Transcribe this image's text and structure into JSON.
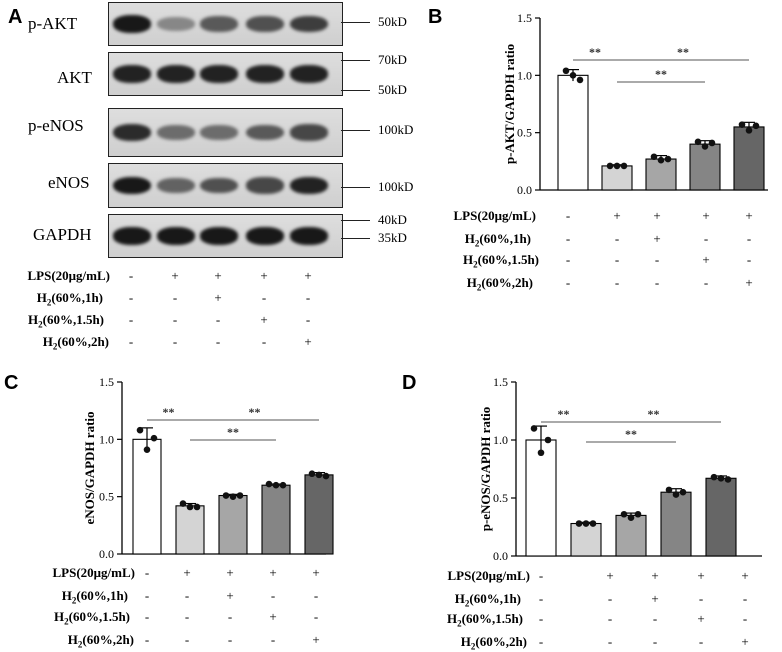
{
  "panel_letters": [
    "A",
    "B",
    "C",
    "D"
  ],
  "blot": {
    "rows": [
      {
        "label": "p-AKT",
        "markers": [
          "50kD"
        ],
        "intensity": [
          0.95,
          0.35,
          0.6,
          0.65,
          0.75
        ]
      },
      {
        "label": "AKT",
        "markers": [
          "70kD",
          "50kD"
        ],
        "intensity": [
          0.9,
          0.9,
          0.9,
          0.9,
          0.9
        ]
      },
      {
        "label": "p-eNOS",
        "markers": [
          "100kD"
        ],
        "intensity": [
          0.85,
          0.5,
          0.5,
          0.6,
          0.7
        ]
      },
      {
        "label": "eNOS",
        "markers": [
          "100kD"
        ],
        "intensity": [
          0.95,
          0.55,
          0.65,
          0.7,
          0.9
        ]
      },
      {
        "label": "GAPDH",
        "markers": [
          "40kD",
          "35kD"
        ],
        "intensity": [
          0.95,
          0.95,
          0.95,
          0.95,
          0.95
        ]
      }
    ]
  },
  "conditions": [
    {
      "label": "LPS(20μg/mL)",
      "signs": [
        "-",
        "+",
        "+",
        "+",
        "+"
      ]
    },
    {
      "label_main": "H",
      "label_sub": "2",
      "label_rest": "(60%,1h)",
      "signs": [
        "-",
        "-",
        "+",
        "-",
        "-"
      ]
    },
    {
      "label_main": "H",
      "label_sub": "2",
      "label_rest": "(60%,1.5h)",
      "signs": [
        "-",
        "-",
        "-",
        "+",
        "-"
      ]
    },
    {
      "label_main": "H",
      "label_sub": "2",
      "label_rest": "(60%,2h)",
      "signs": [
        "-",
        "-",
        "-",
        "-",
        "+"
      ]
    }
  ],
  "chart_data": [
    {
      "panel": "B",
      "type": "bar",
      "ylabel": "p-AKT/GAPDH ratio",
      "ylim": [
        0,
        1.5
      ],
      "yticks": [
        "0.0",
        "0.5",
        "1.0",
        "1.5"
      ],
      "ytick_values": [
        0,
        0.5,
        1.0,
        1.5
      ],
      "values": [
        1.0,
        0.21,
        0.27,
        0.4,
        0.55
      ],
      "errors": [
        0.05,
        0.01,
        0.03,
        0.03,
        0.04
      ],
      "points": [
        [
          1.04,
          1.0,
          0.96
        ],
        [
          0.21,
          0.21,
          0.21
        ],
        [
          0.29,
          0.26,
          0.27
        ],
        [
          0.42,
          0.38,
          0.41
        ],
        [
          0.57,
          0.52,
          0.56
        ]
      ],
      "colors": [
        "#ffffff",
        "#d4d4d4",
        "#a6a6a6",
        "#858585",
        "#666666"
      ],
      "significance": [
        {
          "from": 0,
          "to": 1,
          "label": "**"
        },
        {
          "from": 1,
          "to": 4,
          "label": "**"
        },
        {
          "from": 1,
          "to": 3,
          "label": "**"
        }
      ]
    },
    {
      "panel": "C",
      "type": "bar",
      "ylabel": "eNOS/GAPDH ratio",
      "ylim": [
        0,
        1.5
      ],
      "yticks": [
        "0.0",
        "0.5",
        "1.0",
        "1.5"
      ],
      "ytick_values": [
        0,
        0.5,
        1.0,
        1.5
      ],
      "values": [
        1.0,
        0.42,
        0.51,
        0.6,
        0.69
      ],
      "errors": [
        0.1,
        0.02,
        0.01,
        0.01,
        0.02
      ],
      "points": [
        [
          1.08,
          0.91,
          1.01
        ],
        [
          0.44,
          0.41,
          0.41
        ],
        [
          0.51,
          0.5,
          0.51
        ],
        [
          0.61,
          0.6,
          0.6
        ],
        [
          0.7,
          0.69,
          0.68
        ]
      ],
      "colors": [
        "#ffffff",
        "#d4d4d4",
        "#a6a6a6",
        "#858585",
        "#666666"
      ],
      "significance": [
        {
          "from": 0,
          "to": 1,
          "label": "**"
        },
        {
          "from": 1,
          "to": 4,
          "label": "**"
        },
        {
          "from": 1,
          "to": 3,
          "label": "**"
        }
      ]
    },
    {
      "panel": "D",
      "type": "bar",
      "ylabel": "p-eNOS/GAPDH ratio",
      "ylim": [
        0,
        1.5
      ],
      "yticks": [
        "0.0",
        "0.5",
        "1.0",
        "1.5"
      ],
      "ytick_values": [
        0,
        0.5,
        1.0,
        1.5
      ],
      "values": [
        1.0,
        0.28,
        0.35,
        0.55,
        0.67
      ],
      "errors": [
        0.12,
        0.01,
        0.02,
        0.03,
        0.02
      ],
      "points": [
        [
          1.1,
          0.89,
          1.0
        ],
        [
          0.28,
          0.28,
          0.28
        ],
        [
          0.36,
          0.33,
          0.36
        ],
        [
          0.57,
          0.53,
          0.55
        ],
        [
          0.68,
          0.67,
          0.66
        ]
      ],
      "colors": [
        "#ffffff",
        "#d4d4d4",
        "#a6a6a6",
        "#858585",
        "#666666"
      ],
      "significance": [
        {
          "from": 0,
          "to": 1,
          "label": "**"
        },
        {
          "from": 1,
          "to": 4,
          "label": "**"
        },
        {
          "from": 1,
          "to": 3,
          "label": "**"
        }
      ]
    }
  ]
}
